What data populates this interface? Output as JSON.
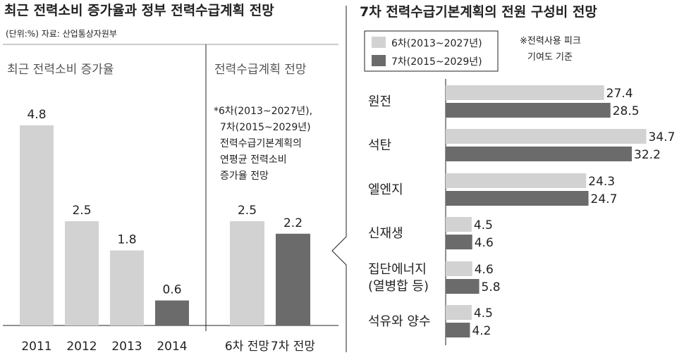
{
  "left": {
    "main_title": "최근 전력소비 증가율과 정부 전력수급계획 전망",
    "unit_source": "(단위:%)  자료: 산업통상자원부",
    "colors": {
      "light": "#d2d2d2",
      "dark": "#6b6b6b",
      "text": "#222222"
    }
  },
  "right": {
    "main_title": "7차 전력수급기본계획의 전원 구성비 전망"
  },
  "chart_data": [
    {
      "type": "bar",
      "title": "최근 전력소비 증가율",
      "categories": [
        "2011",
        "2012",
        "2013",
        "2014"
      ],
      "values": [
        4.8,
        2.5,
        1.8,
        0.6
      ],
      "bar_colors": [
        "light",
        "light",
        "light",
        "dark"
      ],
      "ylim": [
        0,
        6
      ]
    },
    {
      "type": "bar",
      "title": "전력수급계획 전망",
      "categories": [
        "6차 전망",
        "7차 전망"
      ],
      "values": [
        2.5,
        2.2
      ],
      "bar_colors": [
        "light",
        "dark"
      ],
      "ylim": [
        0,
        6
      ],
      "note_lines": [
        "*6차(2013~2027년),",
        "7차(2015~2029년)",
        "전력수급기본계획의",
        "연평균 전력소비",
        "증가율 전망"
      ]
    },
    {
      "type": "bar",
      "orientation": "horizontal",
      "categories": [
        [
          "원전"
        ],
        [
          "석탄"
        ],
        [
          "엘엔지"
        ],
        [
          "신재생"
        ],
        [
          "집단에너지",
          "(열병합 등)"
        ],
        [
          "석유와 양수"
        ]
      ],
      "series": [
        {
          "name": "6차(2013~2027년)",
          "color": "light",
          "values": [
            27.4,
            34.7,
            24.3,
            4.5,
            4.6,
            4.5
          ]
        },
        {
          "name": "7차(2015~2029년)",
          "color": "dark",
          "values": [
            28.5,
            32.2,
            24.7,
            4.6,
            5.8,
            4.2
          ]
        }
      ],
      "xlim": [
        0,
        34.7
      ],
      "note_lines": [
        "※전력사용 피크",
        "기여도 기준"
      ],
      "legend_position": "top-left"
    }
  ]
}
